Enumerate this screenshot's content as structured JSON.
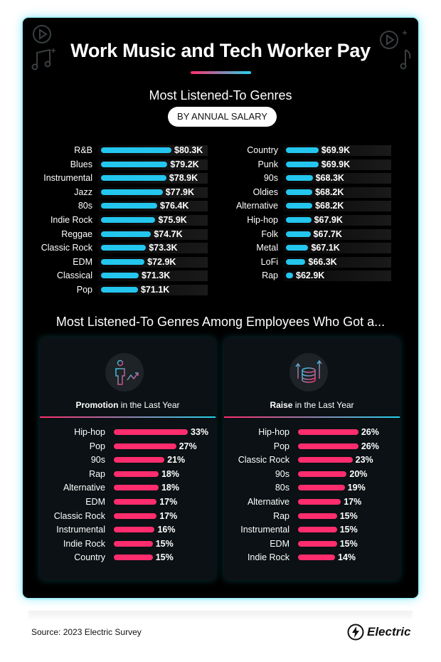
{
  "header": {
    "title": "Work Music and Tech Worker Pay"
  },
  "salary_section": {
    "title": "Most Listened-To Genres",
    "pill": "BY ANNUAL SALARY"
  },
  "employees_section": {
    "title": "Most Listened-To Genres Among Employees Who Got a..."
  },
  "panels": {
    "promotion": {
      "bold": "Promotion",
      "rest": " in the Last Year"
    },
    "raise": {
      "bold": "Raise",
      "rest": " in the Last Year"
    }
  },
  "footer": {
    "source": "Source: 2023 Electric Survey",
    "brand": "Electric"
  },
  "colors": {
    "blue": "#24c6ee",
    "pink": "#ff2d6e",
    "teal": "#24d3ec"
  },
  "chart_data": [
    {
      "type": "bar",
      "title": "Most Listened-To Genres by Annual Salary (left)",
      "unit": "$K",
      "categories": [
        "R&B",
        "Blues",
        "Instrumental",
        "Jazz",
        "80s",
        "Indie Rock",
        "Reggae",
        "Classic Rock",
        "EDM",
        "Classical",
        "Pop"
      ],
      "values": [
        80.3,
        79.2,
        78.9,
        77.9,
        76.4,
        75.9,
        74.7,
        73.3,
        72.9,
        71.3,
        71.1
      ],
      "labels": [
        "$80.3K",
        "$79.2K",
        "$78.9K",
        "$77.9K",
        "$76.4K",
        "$75.9K",
        "$74.7K",
        "$73.3K",
        "$72.9K",
        "$71.3K",
        "$71.1K"
      ]
    },
    {
      "type": "bar",
      "title": "Most Listened-To Genres by Annual Salary (right)",
      "unit": "$K",
      "categories": [
        "Country",
        "Punk",
        "90s",
        "Oldies",
        "Alternative",
        "Hip-hop",
        "Folk",
        "Metal",
        "LoFi",
        "Rap"
      ],
      "values": [
        69.9,
        69.9,
        68.3,
        68.2,
        68.2,
        67.9,
        67.7,
        67.1,
        66.3,
        62.9
      ],
      "labels": [
        "$69.9K",
        "$69.9K",
        "$68.3K",
        "$68.2K",
        "$68.2K",
        "$67.9K",
        "$67.7K",
        "$67.1K",
        "$66.3K",
        "$62.9K"
      ]
    },
    {
      "type": "bar",
      "title": "Promotion in the Last Year",
      "unit": "%",
      "categories": [
        "Hip-hop",
        "Pop",
        "90s",
        "Rap",
        "Alternative",
        "EDM",
        "Classic Rock",
        "Instrumental",
        "Indie Rock",
        "Country"
      ],
      "values": [
        33,
        27,
        21,
        18,
        18,
        17,
        17,
        16,
        15,
        15
      ],
      "labels": [
        "33%",
        "27%",
        "21%",
        "18%",
        "18%",
        "17%",
        "17%",
        "16%",
        "15%",
        "15%"
      ]
    },
    {
      "type": "bar",
      "title": "Raise in the Last Year",
      "unit": "%",
      "categories": [
        "Hip-hop",
        "Pop",
        "Classic Rock",
        "90s",
        "80s",
        "Alternative",
        "Rap",
        "Instrumental",
        "EDM",
        "Indie Rock"
      ],
      "values": [
        26,
        26,
        23,
        20,
        19,
        17,
        15,
        15,
        15,
        14
      ],
      "labels": [
        "26%",
        "26%",
        "23%",
        "20%",
        "19%",
        "17%",
        "15%",
        "15%",
        "15%",
        "14%"
      ]
    }
  ]
}
